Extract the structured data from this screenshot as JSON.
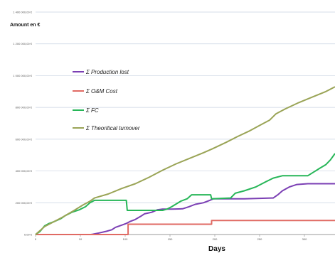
{
  "chart_data": {
    "type": "line",
    "title": "",
    "xlabel": "Days",
    "ylabel": "Amount en €",
    "xlim": [
      0,
      330
    ],
    "ylim": [
      0,
      1400000
    ],
    "x_ticks": [
      "0",
      "10",
      "100",
      "150",
      "200",
      "250",
      "300"
    ],
    "y_ticks": [
      "0,00 €",
      "200 000,00 €",
      "400 000,00 €",
      "600 000,00 €",
      "800 000,00 €",
      "1 000 000,00 €",
      "1 200 000,00 €",
      "1 400 000,00 €"
    ],
    "y_tick_values": [
      0,
      200000,
      400000,
      600000,
      800000,
      1000000,
      1200000,
      1400000
    ],
    "grid": "horizontal",
    "legend_position": "upper-left",
    "series": [
      {
        "name": "Σ Production lost",
        "color": "#7b3fb4",
        "points": [
          [
            0,
            0
          ],
          [
            61,
            0
          ],
          [
            63,
            2000
          ],
          [
            70,
            10000
          ],
          [
            78,
            20000
          ],
          [
            84,
            30000
          ],
          [
            88,
            45000
          ],
          [
            93,
            55000
          ],
          [
            100,
            70000
          ],
          [
            104,
            82000
          ],
          [
            110,
            95000
          ],
          [
            116,
            115000
          ],
          [
            120,
            130000
          ],
          [
            128,
            140000
          ],
          [
            134,
            155000
          ],
          [
            140,
            160000
          ],
          [
            150,
            160000
          ],
          [
            162,
            162000
          ],
          [
            169,
            175000
          ],
          [
            176,
            190000
          ],
          [
            185,
            200000
          ],
          [
            192,
            215000
          ],
          [
            196,
            225000
          ],
          [
            210,
            225000
          ],
          [
            230,
            225000
          ],
          [
            262,
            230000
          ],
          [
            267,
            250000
          ],
          [
            272,
            275000
          ],
          [
            280,
            300000
          ],
          [
            288,
            315000
          ],
          [
            300,
            320000
          ],
          [
            330,
            320000
          ]
        ]
      },
      {
        "name": "Σ O&M Cost",
        "color": "#e06a63",
        "points": [
          [
            0,
            0
          ],
          [
            102,
            0
          ],
          [
            102,
            65000
          ],
          [
            194,
            65000
          ],
          [
            194,
            88000
          ],
          [
            210,
            88000
          ],
          [
            330,
            88000
          ]
        ]
      },
      {
        "name": "Σ FC",
        "color": "#27b658",
        "points": [
          [
            0,
            0
          ],
          [
            5,
            20000
          ],
          [
            10,
            55000
          ],
          [
            15,
            70000
          ],
          [
            20,
            80000
          ],
          [
            28,
            100000
          ],
          [
            33,
            120000
          ],
          [
            40,
            140000
          ],
          [
            48,
            155000
          ],
          [
            55,
            175000
          ],
          [
            60,
            200000
          ],
          [
            65,
            215000
          ],
          [
            100,
            215000
          ],
          [
            101,
            152000
          ],
          [
            140,
            152000
          ],
          [
            145,
            160000
          ],
          [
            150,
            175000
          ],
          [
            160,
            210000
          ],
          [
            167,
            225000
          ],
          [
            172,
            250000
          ],
          [
            193,
            250000
          ],
          [
            194,
            225000
          ],
          [
            215,
            230000
          ],
          [
            220,
            260000
          ],
          [
            230,
            275000
          ],
          [
            243,
            300000
          ],
          [
            253,
            330000
          ],
          [
            262,
            355000
          ],
          [
            272,
            370000
          ],
          [
            300,
            370000
          ],
          [
            307,
            395000
          ],
          [
            314,
            420000
          ],
          [
            320,
            440000
          ],
          [
            325,
            470000
          ],
          [
            330,
            510000
          ]
        ]
      },
      {
        "name": "Σ Theoritical turnover",
        "color": "#9aa456",
        "points": [
          [
            0,
            0
          ],
          [
            10,
            50000
          ],
          [
            20,
            80000
          ],
          [
            30,
            110000
          ],
          [
            42,
            150000
          ],
          [
            52,
            185000
          ],
          [
            60,
            210000
          ],
          [
            65,
            230000
          ],
          [
            80,
            255000
          ],
          [
            95,
            290000
          ],
          [
            110,
            320000
          ],
          [
            125,
            360000
          ],
          [
            140,
            405000
          ],
          [
            155,
            445000
          ],
          [
            170,
            480000
          ],
          [
            185,
            515000
          ],
          [
            195,
            540000
          ],
          [
            210,
            580000
          ],
          [
            222,
            615000
          ],
          [
            235,
            650000
          ],
          [
            248,
            690000
          ],
          [
            258,
            720000
          ],
          [
            265,
            760000
          ],
          [
            275,
            790000
          ],
          [
            290,
            830000
          ],
          [
            305,
            865000
          ],
          [
            320,
            900000
          ],
          [
            330,
            930000
          ]
        ]
      }
    ]
  }
}
